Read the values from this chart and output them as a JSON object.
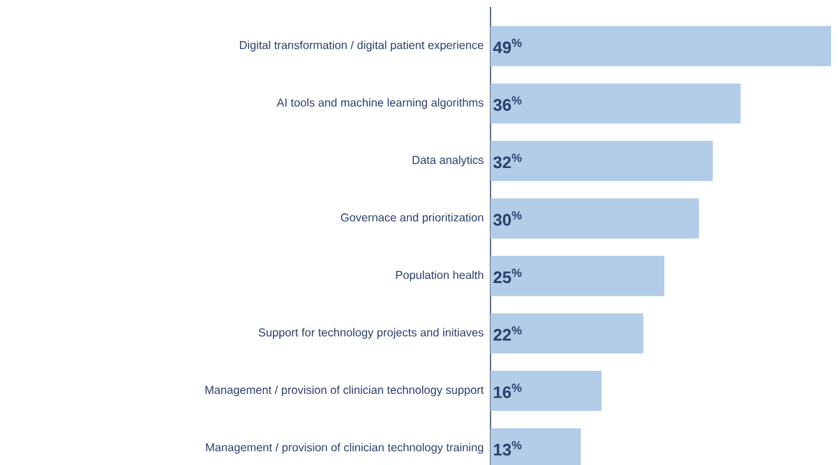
{
  "chart_data": {
    "type": "bar",
    "orientation": "horizontal",
    "categories": [
      "Digital transformation / digital patient experience",
      "AI tools and machine learning algorithms",
      "Data analytics",
      "Governace and prioritization",
      "Population health",
      "Support for technology projects and initiaves",
      "Management / provision of clinician technology support",
      "Management / provision of clinician technology training"
    ],
    "values": [
      49,
      36,
      32,
      30,
      25,
      22,
      16,
      13
    ],
    "value_labels": [
      "49$^{%}$",
      "36$^{%}$",
      "32$^{%}$",
      "30$^{%}$",
      "25$^{%}$",
      "22$^{%}$",
      "16$^{%}$",
      "13$^{%}$"
    ],
    "color": "#b3cde8"
  }
}
